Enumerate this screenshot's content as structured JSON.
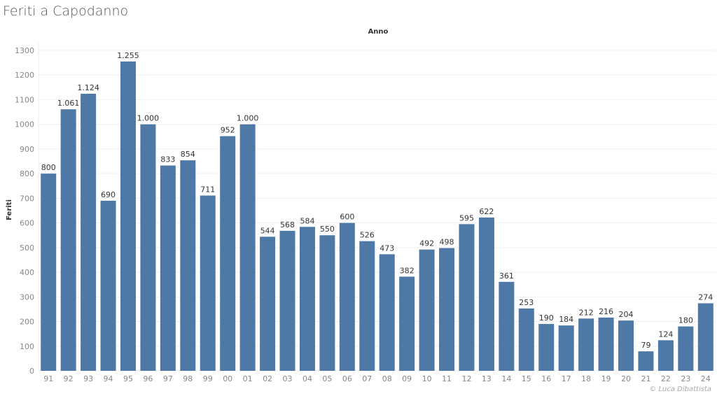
{
  "title": "Feriti a Capodanno",
  "credit": "© Luca Dibattista",
  "chart_data": {
    "type": "bar",
    "title": "Feriti a Capodanno",
    "xlabel": "Anno",
    "ylabel": "Feriti",
    "ylim": [
      0,
      1300
    ],
    "yticks": [
      0,
      100,
      200,
      300,
      400,
      500,
      600,
      700,
      800,
      900,
      1000,
      1100,
      1200,
      1300
    ],
    "grid": true,
    "bar_color": "#4e79a7",
    "categories": [
      "91",
      "92",
      "93",
      "94",
      "95",
      "96",
      "97",
      "98",
      "99",
      "00",
      "01",
      "02",
      "03",
      "04",
      "05",
      "06",
      "07",
      "08",
      "09",
      "10",
      "11",
      "12",
      "13",
      "14",
      "15",
      "16",
      "17",
      "18",
      "19",
      "20",
      "21",
      "22",
      "23",
      "24"
    ],
    "values": [
      800,
      1061,
      1124,
      690,
      1255,
      1000,
      833,
      854,
      711,
      952,
      1000,
      544,
      568,
      584,
      550,
      600,
      526,
      473,
      382,
      492,
      498,
      595,
      622,
      361,
      253,
      190,
      184,
      212,
      216,
      204,
      79,
      124,
      180,
      274
    ],
    "data_labels": [
      "800",
      "1.061",
      "1.124",
      "690",
      "1.255",
      "1.000",
      "833",
      "854",
      "711",
      "952",
      "1.000",
      "544",
      "568",
      "584",
      "550",
      "600",
      "526",
      "473",
      "382",
      "492",
      "498",
      "595",
      "622",
      "361",
      "253",
      "190",
      "184",
      "212",
      "216",
      "204",
      "79",
      "124",
      "180",
      "274"
    ]
  }
}
